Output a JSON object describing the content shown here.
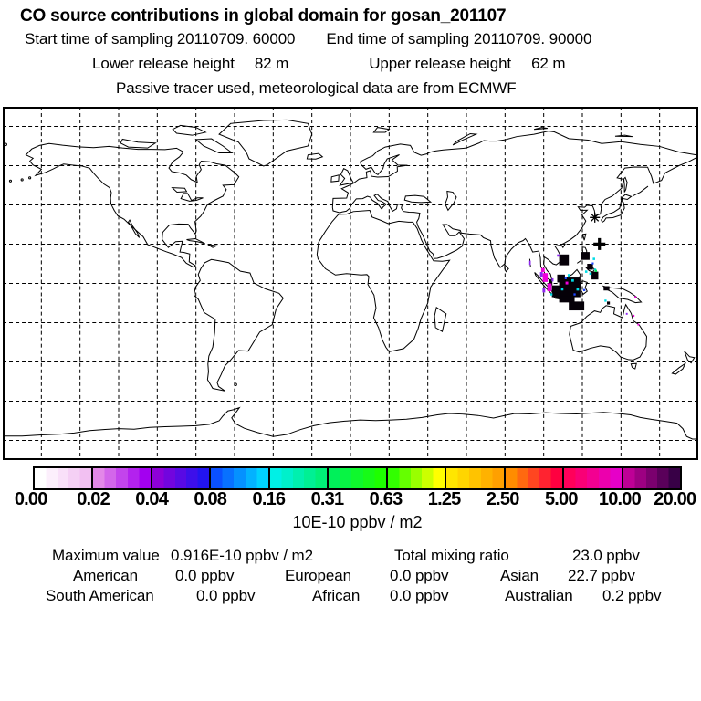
{
  "header": {
    "title": "CO  source contributions in global domain for gosan_201107",
    "start_time": "Start time of sampling 20110709. 60000",
    "end_time": "End time of sampling 20110709. 90000",
    "release": {
      "lower_label": "Lower release height",
      "lower_value": "82 m",
      "upper_label": "Upper release height",
      "upper_value": "62 m"
    },
    "tracer_line": "Passive tracer used, meteorological data are from ECMWF"
  },
  "colorbar": {
    "unit_label": "10E-10 ppbv / m2",
    "tick_labels": [
      "0.00",
      "0.02",
      "0.04",
      "0.08",
      "0.16",
      "0.31",
      "0.63",
      "1.25",
      "2.50",
      "5.00",
      "10.00",
      "20.00"
    ],
    "segments": [
      {
        "from": "#ffffff",
        "to": "#f2c0f2"
      },
      {
        "from": "#e388e8",
        "to": "#a300f0"
      },
      {
        "from": "#8d00d8",
        "to": "#2214f0"
      },
      {
        "from": "#0a50ff",
        "to": "#00d2ff"
      },
      {
        "from": "#00f0e6",
        "to": "#00f078"
      },
      {
        "from": "#00f05a",
        "to": "#1eff00"
      },
      {
        "from": "#32ff00",
        "to": "#ffff00"
      },
      {
        "from": "#ffe600",
        "to": "#ffa000"
      },
      {
        "from": "#ff8c00",
        "to": "#ff0040"
      },
      {
        "from": "#ff005a",
        "to": "#e600c8"
      },
      {
        "from": "#be0096",
        "to": "#380046"
      }
    ]
  },
  "stats": {
    "max_label": "Maximum value",
    "max_value": "0.916E-10 ppbv / m2",
    "total_label": "Total mixing ratio",
    "total_value": "23.0 ppbv",
    "regions": [
      {
        "name": "American",
        "value": "0.0 ppbv"
      },
      {
        "name": "European",
        "value": "0.0 ppbv"
      },
      {
        "name": "Asian",
        "value": "22.7 ppbv"
      },
      {
        "name": "South American",
        "value": "0.0 ppbv"
      },
      {
        "name": "African",
        "value": "0.0 ppbv"
      },
      {
        "name": "Australian",
        "value": "0.2 ppbv"
      }
    ]
  },
  "chart_data": {
    "type": "heatmap",
    "title": "CO source contributions in global domain for gosan_201107",
    "projection": "equirectangular",
    "lon_range": [
      -180,
      180
    ],
    "lat_range": [
      -90,
      90
    ],
    "grid_spacing_deg": 20,
    "grid_style": "dashed",
    "scale_values": [
      0.0,
      0.02,
      0.04,
      0.08,
      0.16,
      0.31,
      0.63,
      1.25,
      2.5,
      5.0,
      10.0,
      20.0
    ],
    "scale_unit": "10E-10 ppbv / m2",
    "maximum_value": "0.916E-10 ppbv / m2",
    "total_mixing_ratio_ppbv": 23.0,
    "regional_contributions_ppbv": {
      "American": 0.0,
      "European": 0.0,
      "Asian": 22.7,
      "South American": 0.0,
      "African": 0.0,
      "Australian": 0.2
    },
    "receptor": {
      "name": "gosan",
      "lon": 126.5,
      "lat": 33.6
    },
    "marker_plus": {
      "lon": 129.0,
      "lat": 20.1
    },
    "hotspots": [
      {
        "lon": 113.5,
        "lat": -2,
        "w": 11,
        "h": 10,
        "color": "#050008"
      },
      {
        "lon": 109,
        "lat": 2.5,
        "w": 4,
        "h": 4,
        "color": "#050008"
      },
      {
        "lon": 117,
        "lat": -11.5,
        "w": 8,
        "h": 4.5,
        "color": "#050008"
      },
      {
        "lon": 110.5,
        "lat": 12,
        "w": 5,
        "h": 5.5,
        "color": "#050008"
      },
      {
        "lon": 121.5,
        "lat": 14,
        "w": 4.5,
        "h": 4,
        "color": "#050008"
      },
      {
        "lon": 126.5,
        "lat": 4,
        "w": 3.5,
        "h": 4,
        "color": "#050008"
      },
      {
        "lon": 124,
        "lat": 8.5,
        "w": 3,
        "h": 3,
        "color": "#050008"
      },
      {
        "lon": 106.5,
        "lat": -4,
        "w": 4.5,
        "h": 6,
        "color": "#050008"
      },
      {
        "lon": 112,
        "lat": -8.2,
        "w": 8,
        "h": 3,
        "color": "#050008"
      },
      {
        "lon": 132.5,
        "lat": -2.5,
        "w": 3,
        "h": 2.2,
        "color": "#050008"
      },
      {
        "lon": 133.5,
        "lat": -10,
        "w": 1.5,
        "h": 1.5,
        "color": "#050008"
      },
      {
        "lon": 103.5,
        "lat": 0.5,
        "w": 2,
        "h": 3,
        "color": "#050008"
      },
      {
        "lon": 98.8,
        "lat": 4.6,
        "w": 1.4,
        "h": 2.4,
        "color": "#8c28f0"
      },
      {
        "lon": 100.1,
        "lat": -3.6,
        "w": 1.4,
        "h": 2,
        "color": "#8c28f0"
      },
      {
        "lon": 107.5,
        "lat": 14.2,
        "w": 1.2,
        "h": 1.2,
        "color": "#8c28f0"
      },
      {
        "lon": 104.6,
        "lat": 1.8,
        "w": 1,
        "h": 1.6,
        "color": "#8c28f0"
      },
      {
        "lon": 92.9,
        "lat": 10.5,
        "w": 0.8,
        "h": 2.2,
        "color": "#8c28f0"
      },
      {
        "lon": 143,
        "lat": -15.5,
        "w": 0.9,
        "h": 0.9,
        "color": "#8c28f0"
      },
      {
        "lon": 100.8,
        "lat": 3,
        "w": 2.6,
        "h": 4.5,
        "color": "#f000dc"
      },
      {
        "lon": 103,
        "lat": -2,
        "w": 2.2,
        "h": 4,
        "color": "#f000dc"
      },
      {
        "lon": 99.6,
        "lat": 6.8,
        "w": 1.8,
        "h": 2,
        "color": "#f000dc"
      },
      {
        "lon": 112,
        "lat": 0.2,
        "w": 1.4,
        "h": 1.4,
        "color": "#f000dc"
      },
      {
        "lon": 147.5,
        "lat": -7,
        "w": 1,
        "h": 1,
        "color": "#f000dc"
      },
      {
        "lon": 146.5,
        "lat": -16.5,
        "w": 1,
        "h": 1,
        "color": "#f000dc"
      },
      {
        "lon": 149,
        "lat": -21,
        "w": 0.9,
        "h": 0.9,
        "color": "#f000dc"
      },
      {
        "lon": 115,
        "lat": 1.5,
        "w": 1.3,
        "h": 1.3,
        "color": "#00dce6"
      },
      {
        "lon": 117.6,
        "lat": -3,
        "w": 1.3,
        "h": 1.3,
        "color": "#00dce6"
      },
      {
        "lon": 122,
        "lat": 6,
        "w": 1.2,
        "h": 1.2,
        "color": "#00dce6"
      },
      {
        "lon": 124.2,
        "lat": 5,
        "w": 1.2,
        "h": 1.2,
        "color": "#00dce6"
      },
      {
        "lon": 126,
        "lat": 12.5,
        "w": 1.2,
        "h": 1.2,
        "color": "#00dce6"
      },
      {
        "lon": 109.6,
        "lat": -3,
        "w": 1.2,
        "h": 1.2,
        "color": "#00dce6"
      },
      {
        "lon": 113,
        "lat": 4.2,
        "w": 1.2,
        "h": 1.2,
        "color": "#00dce6"
      },
      {
        "lon": 126.6,
        "lat": 7,
        "w": 1.1,
        "h": 1.1,
        "color": "#00dce6"
      },
      {
        "lon": 132,
        "lat": -8.8,
        "w": 1.1,
        "h": 1.1,
        "color": "#00dce6"
      },
      {
        "lon": 104,
        "lat": -5.6,
        "w": 1.1,
        "h": 1.1,
        "color": "#00dce6"
      },
      {
        "lon": 121,
        "lat": -3.4,
        "w": 1.1,
        "h": 1.1,
        "color": "#1e46ff"
      },
      {
        "lon": 116,
        "lat": -5.6,
        "w": 1.1,
        "h": 1.1,
        "color": "#1e46ff"
      },
      {
        "lon": 111.4,
        "lat": 2.6,
        "w": 1,
        "h": 1,
        "color": "#1e46ff"
      },
      {
        "lon": 125.4,
        "lat": 10.2,
        "w": 1,
        "h": 1,
        "color": "#1e46ff"
      },
      {
        "lon": 127,
        "lat": 6.4,
        "w": 1.1,
        "h": 1.1,
        "color": "#00e65a"
      }
    ]
  }
}
